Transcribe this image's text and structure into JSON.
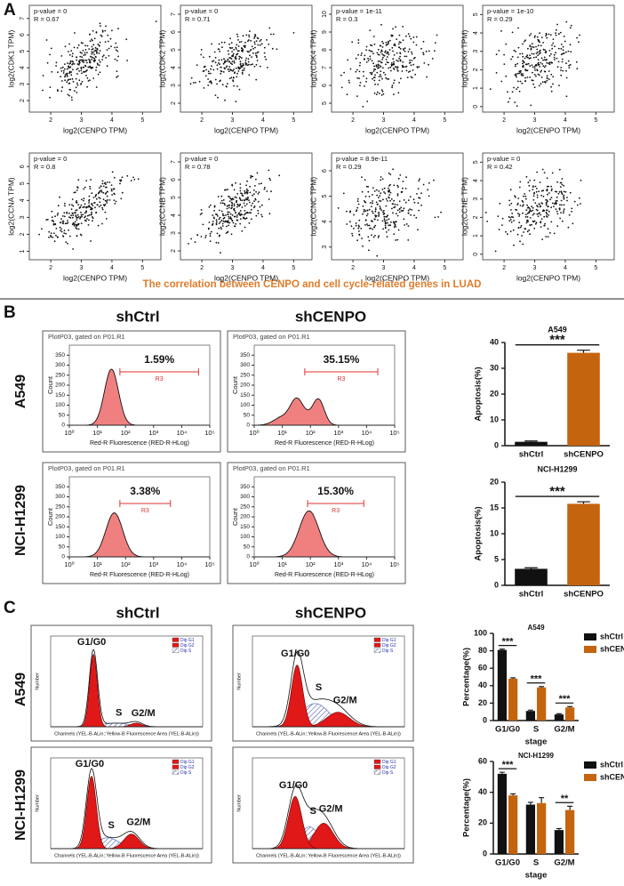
{
  "panel_labels": [
    "A",
    "B",
    "C"
  ],
  "caption": "The correlation between CENPO and cell cycle-related genes in LUAD",
  "chart_data": [
    {
      "type": "scatter",
      "annotations": [
        "p-value = 0",
        "R = 0.67"
      ],
      "xlabel": "log2(CENPO TPM)",
      "ylabel": "log2(CDK1 TPM)",
      "xlim": [
        1.3,
        5.6
      ],
      "xticks": [
        2,
        3,
        4,
        5
      ],
      "ylim": [
        1.3,
        7.8
      ],
      "yticks": [
        2,
        3,
        4,
        5,
        6,
        7
      ]
    },
    {
      "type": "scatter",
      "annotations": [
        "p-value = 0",
        "R = 0.71"
      ],
      "xlabel": "log2(CENPO TPM)",
      "ylabel": "log2(CDK2 TPM)",
      "xlim": [
        1.3,
        5.6
      ],
      "xticks": [
        2,
        3,
        4,
        5
      ],
      "ylim": [
        1.5,
        7.5
      ],
      "yticks": [
        2,
        3,
        4,
        5,
        6,
        7
      ]
    },
    {
      "type": "scatter",
      "annotations": [
        "p-value = 1e-11",
        "R = 0.3"
      ],
      "xlabel": "log2(CENPO TPM)",
      "ylabel": "log2(CDK4 TPM)",
      "xlim": [
        1.3,
        5.6
      ],
      "xticks": [
        2,
        3,
        4,
        5
      ],
      "ylim": [
        4.5,
        10.5
      ],
      "yticks": [
        5,
        6,
        7,
        8,
        9,
        10
      ]
    },
    {
      "type": "scatter",
      "annotations": [
        "p-value = 1e-10",
        "R = 0.29"
      ],
      "xlabel": "log2(CENPO TPM)",
      "ylabel": "log2(CDK6 TPM)",
      "xlim": [
        1.3,
        5.6
      ],
      "xticks": [
        2,
        3,
        4,
        5
      ],
      "ylim": [
        -0.3,
        5.5
      ],
      "yticks": [
        0,
        1,
        2,
        3,
        4,
        5
      ]
    },
    {
      "type": "scatter",
      "annotations": [
        "p-value = 0",
        "R = 0.8"
      ],
      "xlabel": "log2(CENPO TPM)",
      "ylabel": "log2(CCNA TPM)",
      "xlim": [
        1.3,
        5.6
      ],
      "xticks": [
        2,
        3,
        4,
        5
      ],
      "ylim": [
        0.5,
        6.8
      ],
      "yticks": [
        1,
        2,
        3,
        4,
        5,
        6
      ]
    },
    {
      "type": "scatter",
      "annotations": [
        "p-value = 0",
        "R = 0.78"
      ],
      "xlabel": "log2(CENPO TPM)",
      "ylabel": "log2(CCNB TPM)",
      "xlim": [
        1.3,
        5.6
      ],
      "xticks": [
        2,
        3,
        4,
        5
      ],
      "ylim": [
        1.5,
        7.5
      ],
      "yticks": [
        2,
        3,
        4,
        5,
        6,
        7
      ]
    },
    {
      "type": "scatter",
      "annotations": [
        "p-value = 8.9e-11",
        "R = 0.29"
      ],
      "xlabel": "log2(CENPO TPM)",
      "ylabel": "log2(CCNC TPM)",
      "xlim": [
        1.3,
        5.6
      ],
      "xticks": [
        2,
        3,
        4,
        5
      ],
      "ylim": [
        2.5,
        6.7
      ],
      "yticks": [
        3,
        4,
        5,
        6
      ]
    },
    {
      "type": "scatter",
      "annotations": [
        "p-value = 0",
        "R = 0.42"
      ],
      "xlabel": "log2(CENPO TPM)",
      "ylabel": "log2(CCNE TPM)",
      "xlim": [
        1.3,
        5.6
      ],
      "xticks": [
        2,
        3,
        4,
        5
      ],
      "ylim": [
        -0.3,
        5.5
      ],
      "yticks": [
        0,
        1,
        2,
        3,
        4,
        5
      ]
    },
    {
      "type": "bar",
      "title": "A549",
      "ylabel": "Apoptosis(%)",
      "categories": [
        "shCtrl",
        "shCENPO"
      ],
      "values": [
        1.5,
        36
      ],
      "errors": [
        0.3,
        1
      ],
      "colors": [
        "#111111",
        "#c5640f"
      ],
      "ylim": [
        0,
        40
      ],
      "yticks": [
        0,
        10,
        20,
        30,
        40
      ],
      "annotation": "***"
    },
    {
      "type": "bar",
      "title": "NCI-H1299",
      "ylabel": "Apoptosis(%)",
      "categories": [
        "shCtrl",
        "shCENPO"
      ],
      "values": [
        3.2,
        15.8
      ],
      "errors": [
        0.2,
        0.4
      ],
      "colors": [
        "#111111",
        "#c5640f"
      ],
      "ylim": [
        0,
        20
      ],
      "yticks": [
        0,
        5,
        10,
        15,
        20
      ],
      "annotation": "***"
    },
    {
      "type": "groupedbar",
      "title": "A549",
      "ylabel": "Percentage(%)",
      "xlabel": "stage",
      "categories": [
        "G1/G0",
        "S",
        "G2/M"
      ],
      "series": [
        {
          "name": "shCtrl",
          "color": "#111111",
          "values": [
            81,
            11,
            7
          ],
          "errors": [
            1,
            1,
            0.8
          ]
        },
        {
          "name": "shCENPO",
          "color": "#c5640f",
          "values": [
            48,
            38,
            15
          ],
          "errors": [
            1,
            1,
            1
          ]
        }
      ],
      "ylim": [
        0,
        100
      ],
      "yticks": [
        0,
        20,
        40,
        60,
        80,
        100
      ],
      "annotations": [
        "***",
        "***",
        "***"
      ]
    },
    {
      "type": "groupedbar",
      "title": "NCI-H1299",
      "ylabel": "Percentage(%)",
      "xlabel": "stage",
      "categories": [
        "G1/G0",
        "S",
        "G2/M"
      ],
      "series": [
        {
          "name": "shCtrl",
          "color": "#111111",
          "values": [
            52,
            32,
            15.5
          ],
          "errors": [
            1,
            1.5,
            1
          ]
        },
        {
          "name": "shCENPO",
          "color": "#c5640f",
          "values": [
            38,
            33,
            28.5
          ],
          "errors": [
            1,
            3.5,
            2.5
          ]
        }
      ],
      "ylim": [
        0,
        60
      ],
      "yticks": [
        0,
        20,
        40,
        60
      ],
      "annotations": [
        "***",
        null,
        "**"
      ]
    }
  ],
  "flow": {
    "columns": [
      "shCtrl",
      "shCENPO"
    ],
    "rows": [
      "A549",
      "NCI-H1299"
    ],
    "header": "PlotP03, gated on P01.R1",
    "gate": "R3",
    "xlabel": "Red-R Fluorescence (RED-R-HLog)",
    "ylabel": "Count",
    "percent_labels": [
      [
        "1.59%",
        "35.15%"
      ],
      [
        "3.38%",
        "15.30%"
      ]
    ],
    "xscale": "log",
    "xlim": [
      1,
      100000
    ],
    "xticks": [
      {
        "value": 1,
        "label": "10⁰"
      },
      {
        "value": 10,
        "label": "10¹"
      },
      {
        "value": 100,
        "label": "10²"
      },
      {
        "value": 1000,
        "label": "10³"
      },
      {
        "value": 10000,
        "label": "10⁴"
      },
      {
        "value": 100000,
        "label": "10⁵"
      }
    ],
    "ylim": [
      0,
      400
    ],
    "yticks": [
      0,
      50,
      100,
      150,
      200,
      250,
      300,
      350
    ]
  },
  "cell_cycle": {
    "columns": [
      "shCtrl",
      "shCENPO"
    ],
    "rows": [
      "A549",
      "NCI-H1299"
    ],
    "legend": [
      "Dip G1",
      "Dip G2",
      "Dip S"
    ],
    "xlabel": "Channels (YEL-B-ALin::Yellow-B Fluorescence Area (YEL-B-ALin))",
    "ylabel": "Number",
    "phase_labels": [
      "G1/G0",
      "S",
      "G2/M"
    ]
  }
}
